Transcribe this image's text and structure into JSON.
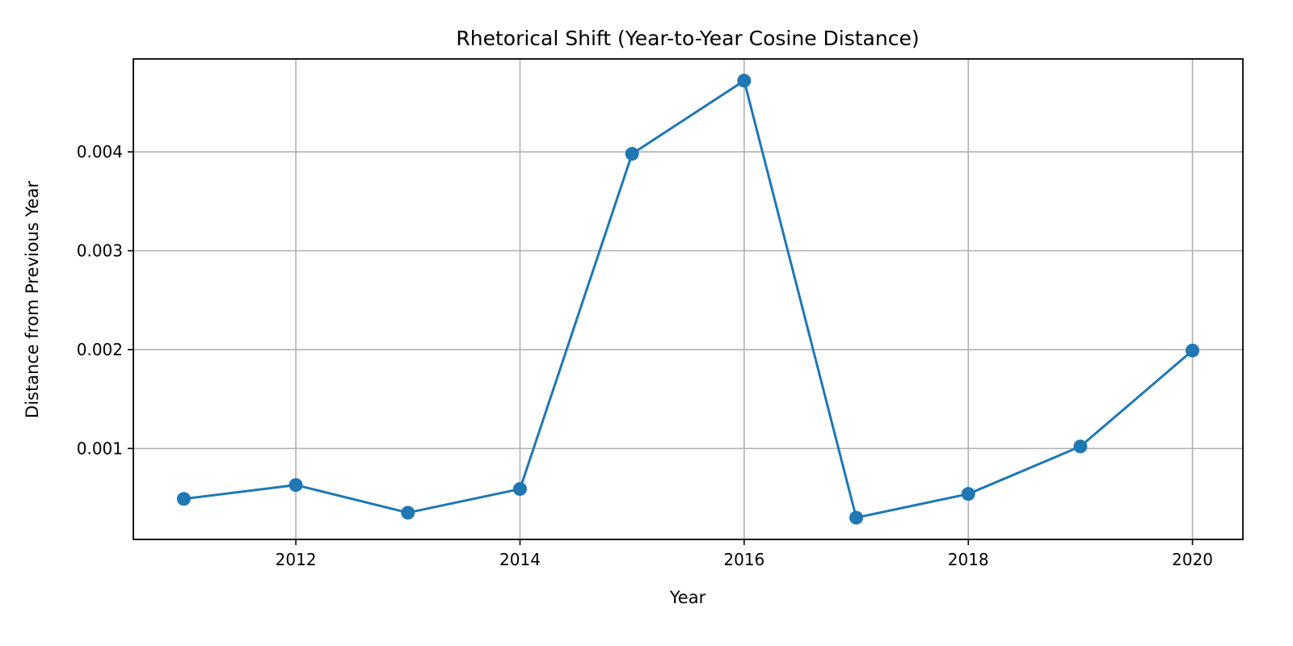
{
  "chart_data": {
    "type": "line",
    "title": "Rhetorical Shift (Year-to-Year Cosine Distance)",
    "xlabel": "Year",
    "ylabel": "Distance from Previous Year",
    "x": [
      2011,
      2012,
      2013,
      2014,
      2015,
      2016,
      2017,
      2018,
      2019,
      2020
    ],
    "series": [
      {
        "values": [
          0.00049,
          0.00063,
          0.00035,
          0.00059,
          0.00398,
          0.00472,
          0.0003,
          0.00054,
          0.00102,
          0.00199
        ],
        "color": "#1f77b4",
        "marker": "circle"
      }
    ],
    "xlim": [
      2010.55,
      2020.45
    ],
    "ylim": [
      8e-05,
      0.00494
    ],
    "xticks": [
      2012,
      2014,
      2016,
      2018,
      2020
    ],
    "xtick_labels": [
      "2012",
      "2014",
      "2016",
      "2018",
      "2020"
    ],
    "yticks": [
      0.001,
      0.002,
      0.003,
      0.004
    ],
    "ytick_labels": [
      "0.001",
      "0.002",
      "0.003",
      "0.004"
    ],
    "grid": true,
    "legend": false
  }
}
